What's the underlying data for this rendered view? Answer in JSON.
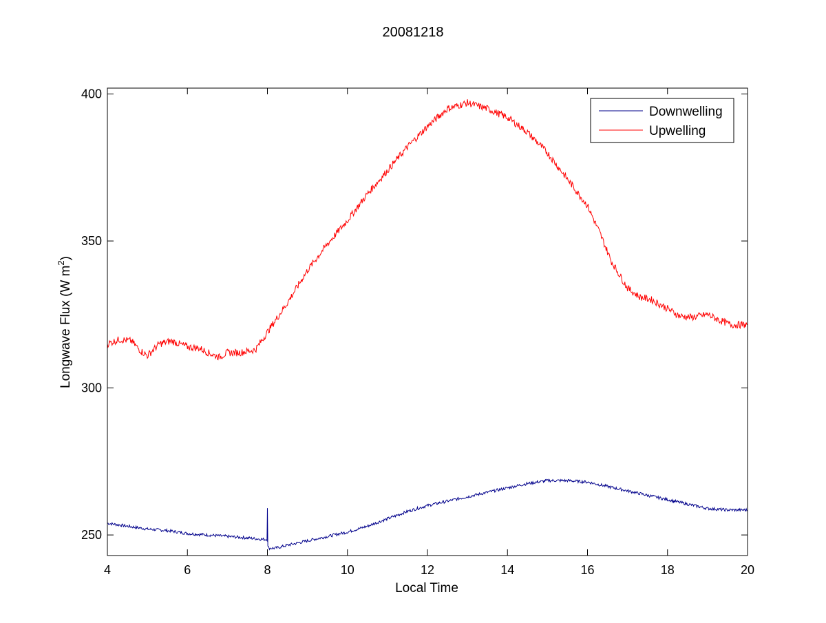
{
  "chart_data": {
    "type": "line",
    "title": "20081218",
    "xlabel": "Local Time",
    "ylabel": "Longwave Flux (W m",
    "ylabel_superscript": "2",
    "ylabel_close": ")",
    "xlim": [
      4,
      20
    ],
    "ylim": [
      243,
      402
    ],
    "xticks": [
      4,
      6,
      8,
      10,
      12,
      14,
      16,
      18,
      20
    ],
    "yticks": [
      250,
      300,
      350,
      400
    ],
    "grid": false,
    "legend_position": "top-right",
    "series": [
      {
        "name": "Downwelling",
        "color": "#00008b",
        "noise": 0.5,
        "x": [
          4.0,
          4.5,
          5.0,
          5.5,
          6.0,
          6.5,
          7.0,
          7.5,
          7.9,
          7.99,
          8.0,
          8.01,
          8.05,
          8.2,
          8.5,
          9.0,
          9.5,
          10.0,
          10.5,
          11.0,
          11.5,
          12.0,
          12.5,
          13.0,
          13.5,
          14.0,
          14.5,
          15.0,
          15.5,
          16.0,
          16.5,
          17.0,
          17.5,
          18.0,
          18.5,
          19.0,
          19.5,
          20.0
        ],
        "y": [
          254,
          253,
          252,
          251.5,
          250.5,
          250,
          249.5,
          249,
          248.5,
          248.5,
          259.5,
          246,
          245.5,
          245.5,
          246.5,
          248,
          249.5,
          251,
          253,
          255.5,
          258,
          260,
          261.5,
          263,
          264.5,
          266,
          267.5,
          268.5,
          268.5,
          268,
          266.5,
          265,
          263.5,
          262,
          260.5,
          259,
          258.5,
          258.5
        ]
      },
      {
        "name": "Upwelling",
        "color": "#ff0000",
        "noise": 1.2,
        "x": [
          4.0,
          4.3,
          4.6,
          4.8,
          5.0,
          5.3,
          5.6,
          6.0,
          6.3,
          6.6,
          6.8,
          7.0,
          7.3,
          7.7,
          8.0,
          8.5,
          9.0,
          9.5,
          10.0,
          10.5,
          11.0,
          11.5,
          12.0,
          12.5,
          13.0,
          13.5,
          14.0,
          14.5,
          15.0,
          15.5,
          16.0,
          16.3,
          16.6,
          17.0,
          17.3,
          17.6,
          18.0,
          18.3,
          18.6,
          19.0,
          19.3,
          19.6,
          20.0
        ],
        "y": [
          315,
          316.5,
          316,
          313,
          311,
          315,
          316,
          314,
          313.5,
          311.5,
          310.5,
          312,
          312,
          313,
          319,
          329,
          340,
          349,
          357,
          366,
          374,
          382,
          389,
          395,
          397,
          395,
          392,
          387,
          380,
          371,
          362,
          353,
          343,
          334,
          331,
          330,
          327,
          324.5,
          324,
          325,
          323,
          321.5,
          321.5
        ]
      }
    ]
  }
}
